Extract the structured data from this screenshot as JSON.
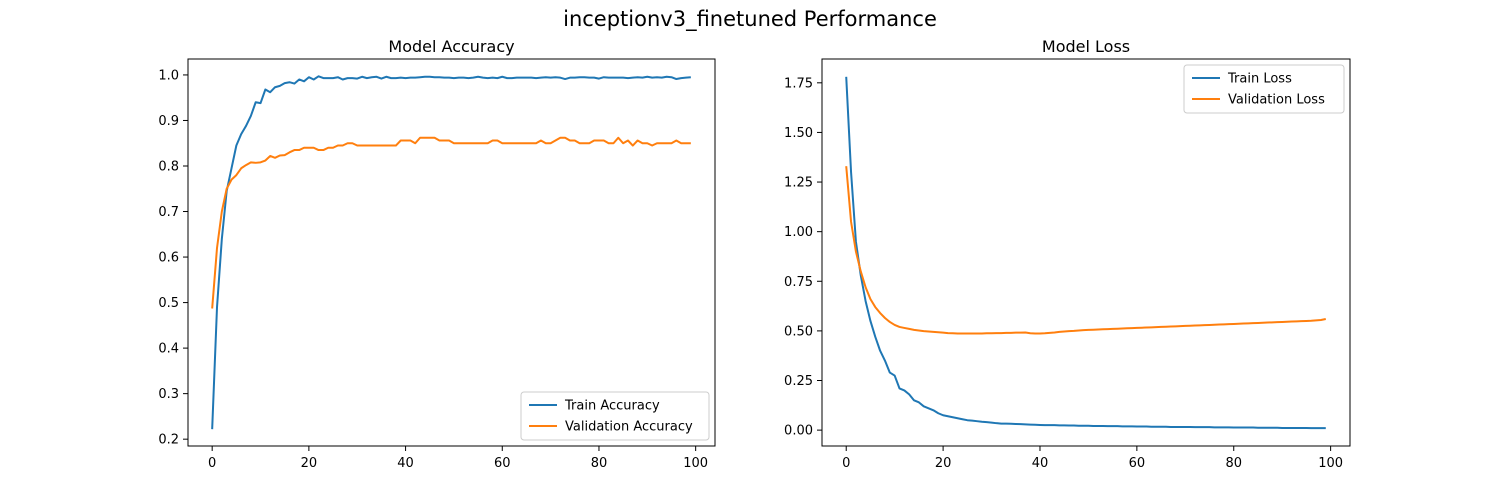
{
  "figure": {
    "title": "inceptionv3_finetuned Performance"
  },
  "chart_data": [
    {
      "type": "line",
      "title": "Model Accuracy",
      "xlim": [
        -5,
        104
      ],
      "ylim": [
        0.185,
        1.035
      ],
      "x_ticks": [
        0,
        20,
        40,
        60,
        80,
        100
      ],
      "y_ticks": [
        0.2,
        0.3,
        0.4,
        0.5,
        0.6,
        0.7,
        0.8,
        0.9,
        1.0
      ],
      "legend_position": "lower-right",
      "series": [
        {
          "name": "Train Accuracy",
          "color": "#1f77b4",
          "values": [
            0.222,
            0.49,
            0.64,
            0.745,
            0.795,
            0.845,
            0.87,
            0.888,
            0.91,
            0.94,
            0.938,
            0.968,
            0.962,
            0.973,
            0.976,
            0.982,
            0.984,
            0.981,
            0.99,
            0.986,
            0.995,
            0.99,
            0.997,
            0.993,
            0.993,
            0.993,
            0.995,
            0.99,
            0.993,
            0.993,
            0.992,
            0.996,
            0.993,
            0.995,
            0.996,
            0.992,
            0.996,
            0.993,
            0.993,
            0.994,
            0.993,
            0.994,
            0.994,
            0.995,
            0.996,
            0.996,
            0.995,
            0.995,
            0.994,
            0.994,
            0.993,
            0.994,
            0.994,
            0.993,
            0.994,
            0.996,
            0.994,
            0.993,
            0.994,
            0.993,
            0.996,
            0.993,
            0.993,
            0.994,
            0.994,
            0.994,
            0.994,
            0.993,
            0.994,
            0.995,
            0.994,
            0.995,
            0.994,
            0.991,
            0.994,
            0.994,
            0.995,
            0.995,
            0.994,
            0.994,
            0.992,
            0.995,
            0.994,
            0.994,
            0.994,
            0.994,
            0.993,
            0.994,
            0.995,
            0.994,
            0.996,
            0.994,
            0.995,
            0.994,
            0.996,
            0.995,
            0.991,
            0.993,
            0.994,
            0.995
          ]
        },
        {
          "name": "Validation Accuracy",
          "color": "#ff7f0e",
          "values": [
            0.487,
            0.62,
            0.7,
            0.75,
            0.77,
            0.78,
            0.795,
            0.802,
            0.808,
            0.807,
            0.808,
            0.812,
            0.822,
            0.818,
            0.823,
            0.824,
            0.83,
            0.835,
            0.835,
            0.84,
            0.84,
            0.84,
            0.835,
            0.835,
            0.84,
            0.84,
            0.845,
            0.845,
            0.85,
            0.85,
            0.845,
            0.845,
            0.845,
            0.845,
            0.845,
            0.845,
            0.845,
            0.845,
            0.845,
            0.856,
            0.856,
            0.856,
            0.85,
            0.862,
            0.862,
            0.862,
            0.862,
            0.856,
            0.856,
            0.856,
            0.85,
            0.85,
            0.85,
            0.85,
            0.85,
            0.85,
            0.85,
            0.85,
            0.856,
            0.856,
            0.85,
            0.85,
            0.85,
            0.85,
            0.85,
            0.85,
            0.85,
            0.85,
            0.856,
            0.85,
            0.85,
            0.856,
            0.862,
            0.862,
            0.856,
            0.856,
            0.85,
            0.85,
            0.85,
            0.856,
            0.856,
            0.856,
            0.85,
            0.85,
            0.862,
            0.85,
            0.856,
            0.845,
            0.856,
            0.85,
            0.85,
            0.845,
            0.85,
            0.85,
            0.85,
            0.85,
            0.856,
            0.85,
            0.85,
            0.85
          ]
        }
      ]
    },
    {
      "type": "line",
      "title": "Model Loss",
      "xlim": [
        -5,
        104
      ],
      "ylim": [
        -0.08,
        1.87
      ],
      "x_ticks": [
        0,
        20,
        40,
        60,
        80,
        100
      ],
      "y_ticks": [
        "0.00",
        "0.25",
        "0.50",
        "0.75",
        "1.00",
        "1.25",
        "1.50",
        "1.75"
      ],
      "legend_position": "upper-right",
      "series": [
        {
          "name": "Train Loss",
          "color": "#1f77b4",
          "values": [
            1.78,
            1.3,
            0.95,
            0.78,
            0.65,
            0.55,
            0.47,
            0.4,
            0.35,
            0.29,
            0.275,
            0.21,
            0.2,
            0.18,
            0.15,
            0.14,
            0.12,
            0.11,
            0.1,
            0.085,
            0.075,
            0.07,
            0.065,
            0.06,
            0.055,
            0.05,
            0.048,
            0.045,
            0.042,
            0.04,
            0.038,
            0.035,
            0.033,
            0.033,
            0.032,
            0.031,
            0.03,
            0.029,
            0.028,
            0.027,
            0.026,
            0.025,
            0.025,
            0.025,
            0.024,
            0.024,
            0.023,
            0.023,
            0.022,
            0.022,
            0.022,
            0.021,
            0.021,
            0.021,
            0.02,
            0.02,
            0.02,
            0.019,
            0.019,
            0.019,
            0.018,
            0.018,
            0.018,
            0.017,
            0.017,
            0.017,
            0.017,
            0.016,
            0.016,
            0.016,
            0.016,
            0.016,
            0.015,
            0.015,
            0.015,
            0.015,
            0.014,
            0.014,
            0.014,
            0.014,
            0.013,
            0.013,
            0.013,
            0.013,
            0.013,
            0.012,
            0.012,
            0.012,
            0.012,
            0.012,
            0.011,
            0.011,
            0.011,
            0.011,
            0.011,
            0.011,
            0.01,
            0.01,
            0.01,
            0.01
          ]
        },
        {
          "name": "Validation Loss",
          "color": "#ff7f0e",
          "values": [
            1.33,
            1.05,
            0.9,
            0.8,
            0.72,
            0.66,
            0.62,
            0.59,
            0.565,
            0.545,
            0.53,
            0.52,
            0.515,
            0.51,
            0.505,
            0.502,
            0.499,
            0.497,
            0.495,
            0.493,
            0.491,
            0.489,
            0.488,
            0.487,
            0.487,
            0.487,
            0.487,
            0.487,
            0.487,
            0.488,
            0.488,
            0.489,
            0.489,
            0.49,
            0.49,
            0.491,
            0.491,
            0.492,
            0.488,
            0.487,
            0.487,
            0.488,
            0.49,
            0.492,
            0.495,
            0.497,
            0.499,
            0.5,
            0.502,
            0.504,
            0.505,
            0.506,
            0.507,
            0.508,
            0.509,
            0.51,
            0.511,
            0.512,
            0.513,
            0.514,
            0.515,
            0.516,
            0.517,
            0.518,
            0.519,
            0.52,
            0.521,
            0.522,
            0.523,
            0.524,
            0.525,
            0.526,
            0.527,
            0.528,
            0.529,
            0.53,
            0.531,
            0.532,
            0.533,
            0.534,
            0.535,
            0.536,
            0.537,
            0.538,
            0.539,
            0.54,
            0.541,
            0.542,
            0.543,
            0.544,
            0.545,
            0.546,
            0.547,
            0.548,
            0.549,
            0.55,
            0.551,
            0.553,
            0.555,
            0.56
          ]
        }
      ]
    }
  ]
}
